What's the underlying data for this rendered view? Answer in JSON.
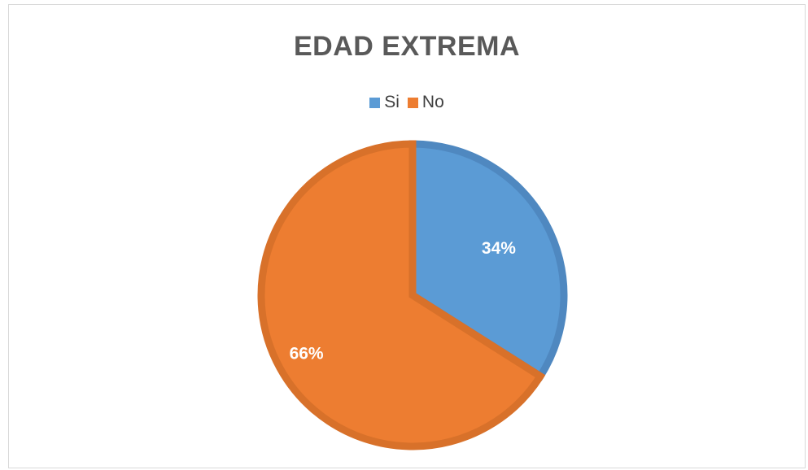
{
  "chart_data": {
    "type": "pie",
    "title": "EDAD EXTREMA",
    "legend_position": "top",
    "categories": [
      "Si",
      "No"
    ],
    "values": [
      34,
      66
    ],
    "labels": [
      "34%",
      "66%"
    ],
    "colors": [
      "#5B9BD5",
      "#ED7D31"
    ]
  }
}
